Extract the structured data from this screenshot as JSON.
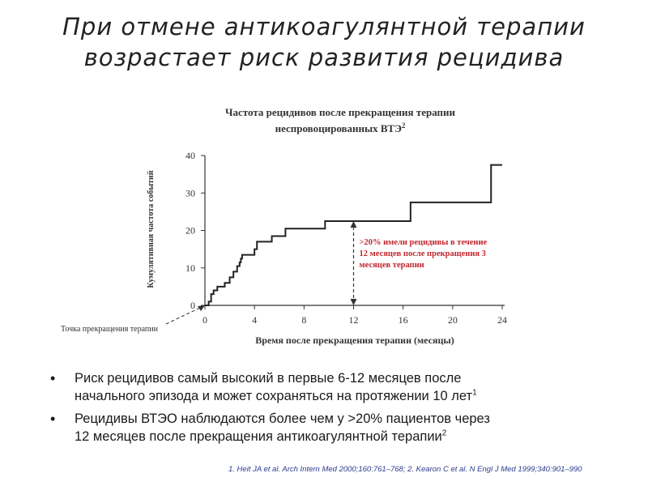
{
  "slide": {
    "title_line1": "При отмене антикоагулянтной терапии",
    "title_line2": "возрастает риск развития рецидива"
  },
  "chart_data": {
    "type": "line",
    "title_line1": "Частота рецидивов после прекращения терапии",
    "title_line2": "неспровоцированных ВТЭ",
    "title_sup": "2",
    "xlabel": "Время после прекращения терапии (месяцы)",
    "ylabel": "Кумулятивная частота событий",
    "xlim": [
      0,
      24
    ],
    "ylim": [
      0,
      40
    ],
    "xticks": [
      0,
      4,
      8,
      12,
      16,
      20,
      24
    ],
    "yticks": [
      0,
      10,
      20,
      30,
      40
    ],
    "grid": false,
    "step_points": [
      [
        0,
        0
      ],
      [
        0.3,
        1
      ],
      [
        0.5,
        3
      ],
      [
        0.7,
        4
      ],
      [
        1.0,
        5
      ],
      [
        1.6,
        6
      ],
      [
        2.0,
        7.5
      ],
      [
        2.3,
        9
      ],
      [
        2.6,
        10.5
      ],
      [
        2.8,
        11.5
      ],
      [
        2.9,
        12.5
      ],
      [
        3.0,
        13.5
      ],
      [
        4.0,
        15
      ],
      [
        4.2,
        17
      ],
      [
        5.4,
        18.5
      ],
      [
        6.5,
        20.5
      ],
      [
        9.7,
        22.5
      ],
      [
        16.6,
        27.5
      ],
      [
        23.1,
        37.5
      ],
      [
        24,
        37.5
      ]
    ],
    "annotation": {
      "x": 12,
      "y_from": 0,
      "y_to": 22.5,
      "lines": [
        ">20% имели рецидивы в течение",
        "12 месяцев после прекращения 3",
        "месяцев терапии"
      ],
      "color": "#c0262d"
    },
    "callout": {
      "label": "Точка прекращения терапии",
      "x": 0,
      "y": 0
    }
  },
  "bullets": [
    {
      "text_line1": "Риск рецидивов самый высокий в первые 6-12 месяцев после",
      "text_line2": "начального эпизода и может сохраняться на протяжении 10 лет",
      "sup": "1"
    },
    {
      "text_line1": "Рецидивы ВТЭО наблюдаются более чем у >20% пациентов через",
      "text_line2": "12 месяцев после прекращения антикоагулянтной терапии",
      "sup": "2"
    }
  ],
  "references": "1. Heit JA et al. Arch Intern Med 2000;160:761–768; 2. Kearon C et al. N Engl J Med 1999;340:901–990",
  "colors": {
    "annotation": "#c0262d",
    "reference": "#2e3b8f",
    "axis": "#333333"
  }
}
